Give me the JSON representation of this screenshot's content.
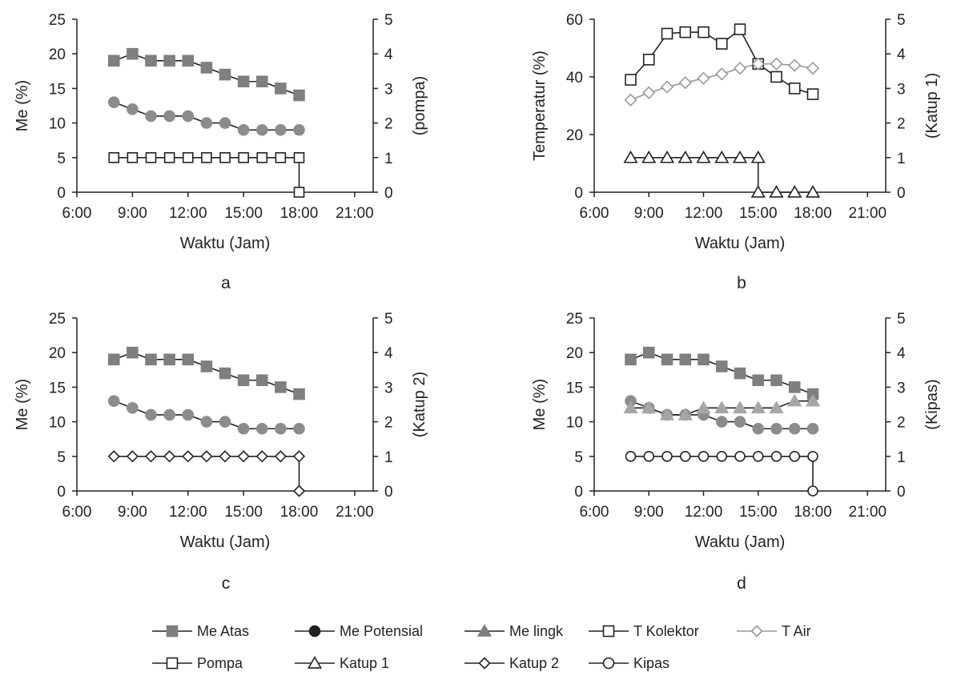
{
  "legend": [
    {
      "label": "Me Atas",
      "marker": "square",
      "fill": "#7f7f7f",
      "stroke": "#7f7f7f",
      "lineColor": "#222222"
    },
    {
      "label": "Me Potensial",
      "marker": "circle",
      "fill": "#222222",
      "stroke": "#222222",
      "lineColor": "#222222"
    },
    {
      "label": "Me lingk",
      "marker": "triangle",
      "fill": "#7f7f7f",
      "stroke": "#7f7f7f",
      "lineColor": "#222222"
    },
    {
      "label": "T Kolektor",
      "marker": "square",
      "fill": "#ffffff",
      "stroke": "#222222",
      "lineColor": "#222222"
    },
    {
      "label": "T Air",
      "marker": "diamond",
      "fill": "#ffffff",
      "stroke": "#999999",
      "lineColor": "#999999"
    },
    {
      "label": "Pompa",
      "marker": "square",
      "fill": "#ffffff",
      "stroke": "#222222",
      "lineColor": "#222222"
    },
    {
      "label": "Katup 1",
      "marker": "triangle",
      "fill": "#ffffff",
      "stroke": "#222222",
      "lineColor": "#222222"
    },
    {
      "label": "Katup 2",
      "marker": "diamond",
      "fill": "#ffffff",
      "stroke": "#222222",
      "lineColor": "#222222"
    },
    {
      "label": "Kipas",
      "marker": "circle",
      "fill": "#ffffff",
      "stroke": "#222222",
      "lineColor": "#222222"
    }
  ],
  "chart_data": [
    {
      "type": "line",
      "panel_label": "a",
      "xlabel": "Waktu (Jam)",
      "ylabel": "Me (%)",
      "y2label": "(pompa)",
      "xlim": [
        6,
        22
      ],
      "xticks": [
        "6:00",
        "9:00",
        "12:00",
        "15:00",
        "18:00",
        "21:00"
      ],
      "ylim": [
        0,
        25
      ],
      "yticks": [
        "0",
        "5",
        "10",
        "15",
        "20",
        "25"
      ],
      "y2lim": [
        0,
        5
      ],
      "y2ticks": [
        "0",
        "1",
        "2",
        "3",
        "4",
        "5"
      ],
      "series": [
        {
          "name": "Me Atas",
          "axis": "left",
          "marker": "square",
          "fill": "#7f7f7f",
          "stroke": "#7f7f7f",
          "lineColor": "#222222",
          "size": 13,
          "x": [
            8,
            9,
            10,
            11,
            12,
            13,
            14,
            15,
            16,
            17,
            18
          ],
          "y": [
            19,
            20,
            19,
            19,
            19,
            18,
            17,
            16,
            16,
            15,
            14
          ]
        },
        {
          "name": "Me Potensial",
          "axis": "left",
          "marker": "circle",
          "fill": "#8c8c8c",
          "stroke": "#8c8c8c",
          "lineColor": "#222222",
          "size": 13,
          "x": [
            8,
            9,
            10,
            11,
            12,
            13,
            14,
            15,
            16,
            17,
            18
          ],
          "y": [
            13,
            12,
            11,
            11,
            11,
            10,
            10,
            9,
            9,
            9,
            9
          ]
        },
        {
          "name": "Pompa",
          "axis": "right",
          "marker": "square",
          "fill": "#ffffff",
          "stroke": "#222222",
          "lineColor": "#222222",
          "size": 12,
          "step": true,
          "x": [
            8,
            9,
            10,
            11,
            12,
            13,
            14,
            15,
            16,
            17,
            18,
            18
          ],
          "y": [
            1,
            1,
            1,
            1,
            1,
            1,
            1,
            1,
            1,
            1,
            1,
            0
          ]
        }
      ]
    },
    {
      "type": "line",
      "panel_label": "b",
      "xlabel": "Waktu (Jam)",
      "ylabel": "Temperatur (%)",
      "y2label": "(Katup 1)",
      "xlim": [
        6,
        22
      ],
      "xticks": [
        "6:00",
        "9:00",
        "12:00",
        "15:00",
        "18:00",
        "21:00"
      ],
      "ylim": [
        0,
        60
      ],
      "yticks": [
        "0",
        "20",
        "40",
        "60"
      ],
      "y2lim": [
        0,
        5
      ],
      "y2ticks": [
        "0",
        "1",
        "2",
        "3",
        "4",
        "5"
      ],
      "series": [
        {
          "name": "T Kolektor",
          "axis": "left",
          "marker": "square",
          "fill": "#ffffff",
          "stroke": "#222222",
          "lineColor": "#222222",
          "size": 13,
          "x": [
            8,
            9,
            10,
            11,
            12,
            13,
            14,
            15,
            16,
            17,
            18
          ],
          "y": [
            39,
            46,
            55,
            55.5,
            55.5,
            51.5,
            56.5,
            44.5,
            40,
            36,
            34
          ]
        },
        {
          "name": "T Air",
          "axis": "left",
          "marker": "diamond",
          "fill": "#ffffff",
          "stroke": "#999999",
          "lineColor": "#999999",
          "size": 14,
          "x": [
            8,
            9,
            10,
            11,
            12,
            13,
            14,
            15,
            16,
            17,
            18
          ],
          "y": [
            32,
            34.5,
            36.5,
            38,
            39.5,
            41,
            43,
            44.5,
            44.5,
            44,
            43
          ]
        },
        {
          "name": "Katup 1",
          "axis": "right",
          "marker": "triangle",
          "fill": "#ffffff",
          "stroke": "#222222",
          "lineColor": "#222222",
          "size": 14,
          "step": true,
          "x": [
            8,
            9,
            10,
            11,
            12,
            13,
            14,
            15,
            15,
            16,
            17,
            18
          ],
          "y": [
            1,
            1,
            1,
            1,
            1,
            1,
            1,
            1,
            0,
            0,
            0,
            0
          ]
        }
      ]
    },
    {
      "type": "line",
      "panel_label": "c",
      "xlabel": "Waktu (Jam)",
      "ylabel": "Me  (%)",
      "y2label": "(Katup 2)",
      "xlim": [
        6,
        22
      ],
      "xticks": [
        "6:00",
        "9:00",
        "12:00",
        "15:00",
        "18:00",
        "21:00"
      ],
      "ylim": [
        0,
        25
      ],
      "yticks": [
        "0",
        "5",
        "10",
        "15",
        "20",
        "25"
      ],
      "y2lim": [
        0,
        5
      ],
      "y2ticks": [
        "0",
        "1",
        "2",
        "3",
        "4",
        "5"
      ],
      "series": [
        {
          "name": "Me Atas",
          "axis": "left",
          "marker": "square",
          "fill": "#7f7f7f",
          "stroke": "#7f7f7f",
          "lineColor": "#222222",
          "size": 13,
          "x": [
            8,
            9,
            10,
            11,
            12,
            13,
            14,
            15,
            16,
            17,
            18
          ],
          "y": [
            19,
            20,
            19,
            19,
            19,
            18,
            17,
            16,
            16,
            15,
            14
          ]
        },
        {
          "name": "Me Potensial",
          "axis": "left",
          "marker": "circle",
          "fill": "#8c8c8c",
          "stroke": "#8c8c8c",
          "lineColor": "#222222",
          "size": 13,
          "x": [
            8,
            9,
            10,
            11,
            12,
            13,
            14,
            15,
            16,
            17,
            18
          ],
          "y": [
            13,
            12,
            11,
            11,
            11,
            10,
            10,
            9,
            9,
            9,
            9
          ]
        },
        {
          "name": "Katup 2",
          "axis": "right",
          "marker": "diamond",
          "fill": "#ffffff",
          "stroke": "#222222",
          "lineColor": "#222222",
          "size": 13,
          "step": true,
          "x": [
            8,
            9,
            10,
            11,
            12,
            13,
            14,
            15,
            16,
            17,
            18,
            18
          ],
          "y": [
            1,
            1,
            1,
            1,
            1,
            1,
            1,
            1,
            1,
            1,
            1,
            0
          ]
        }
      ]
    },
    {
      "type": "line",
      "panel_label": "d",
      "xlabel": "Waktu (Jam)",
      "ylabel": "Me  (%)",
      "y2label": "(Kipas)",
      "xlim": [
        6,
        22
      ],
      "xticks": [
        "6:00",
        "9:00",
        "12:00",
        "15:00",
        "18:00",
        "21:00"
      ],
      "ylim": [
        0,
        25
      ],
      "yticks": [
        "0",
        "5",
        "10",
        "15",
        "20",
        "25"
      ],
      "y2lim": [
        0,
        5
      ],
      "y2ticks": [
        "0",
        "1",
        "2",
        "3",
        "4",
        "5"
      ],
      "series": [
        {
          "name": "Me Atas",
          "axis": "left",
          "marker": "square",
          "fill": "#7f7f7f",
          "stroke": "#7f7f7f",
          "lineColor": "#222222",
          "size": 13,
          "x": [
            8,
            9,
            10,
            11,
            12,
            13,
            14,
            15,
            16,
            17,
            18
          ],
          "y": [
            19,
            20,
            19,
            19,
            19,
            18,
            17,
            16,
            16,
            15,
            14
          ]
        },
        {
          "name": "Me Potensial",
          "axis": "left",
          "marker": "circle",
          "fill": "#8c8c8c",
          "stroke": "#8c8c8c",
          "lineColor": "#222222",
          "size": 13,
          "x": [
            8,
            9,
            10,
            11,
            12,
            13,
            14,
            15,
            16,
            17,
            18
          ],
          "y": [
            13,
            12,
            11,
            11,
            11,
            10,
            10,
            9,
            9,
            9,
            9
          ]
        },
        {
          "name": "Me lingk",
          "axis": "left",
          "marker": "triangle",
          "fill": "#a6a6a6",
          "stroke": "#a6a6a6",
          "lineColor": "#222222",
          "size": 14,
          "x": [
            8,
            9,
            10,
            11,
            12,
            13,
            14,
            15,
            16,
            17,
            18
          ],
          "y": [
            12,
            12,
            11,
            11,
            12,
            12,
            12,
            12,
            12,
            13,
            13
          ]
        },
        {
          "name": "Kipas",
          "axis": "right",
          "marker": "circle",
          "fill": "#ffffff",
          "stroke": "#222222",
          "lineColor": "#222222",
          "size": 12,
          "step": true,
          "x": [
            8,
            9,
            10,
            11,
            12,
            13,
            14,
            15,
            16,
            17,
            18,
            18
          ],
          "y": [
            1,
            1,
            1,
            1,
            1,
            1,
            1,
            1,
            1,
            1,
            1,
            0
          ]
        }
      ]
    }
  ]
}
